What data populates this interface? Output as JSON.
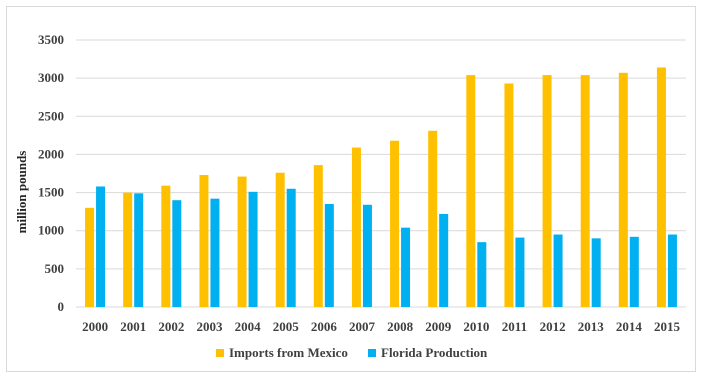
{
  "chart_data": {
    "type": "bar",
    "title": "",
    "xlabel": "",
    "ylabel": "million pounds",
    "ylim": [
      0,
      3500
    ],
    "yticks": [
      0,
      500,
      1000,
      1500,
      2000,
      2500,
      3000,
      3500
    ],
    "grid": true,
    "legend_position": "bottom",
    "categories": [
      "2000",
      "2001",
      "2002",
      "2003",
      "2004",
      "2005",
      "2006",
      "2007",
      "2008",
      "2009",
      "2010",
      "2011",
      "2012",
      "2013",
      "2014",
      "2015"
    ],
    "series": [
      {
        "name": "Imports from Mexico",
        "color": "#FFC000",
        "values": [
          1300,
          1500,
          1590,
          1730,
          1710,
          1760,
          1860,
          2090,
          2180,
          2310,
          3040,
          2930,
          3040,
          3040,
          3070,
          3140
        ]
      },
      {
        "name": "Florida Production",
        "color": "#00B0F0",
        "values": [
          1580,
          1490,
          1400,
          1420,
          1510,
          1550,
          1350,
          1340,
          1040,
          1220,
          850,
          910,
          950,
          900,
          920,
          950
        ]
      }
    ]
  }
}
